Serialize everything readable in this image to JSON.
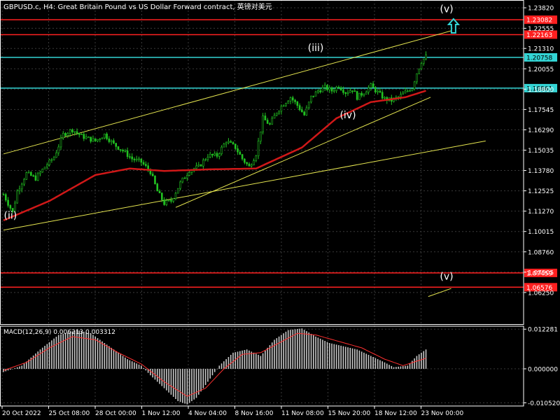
{
  "header": {
    "symbol_line": "GBPUSD.c, H4:  Great Britain Pound vs US Dollar Forward contract, 英镑对美元"
  },
  "chart_data": {
    "type": "candlestick",
    "symbol": "GBPUSD.c",
    "timeframe": "H4",
    "price_axis": {
      "range": [
        1.043,
        1.243
      ],
      "ticks": [
        1.2382,
        1.22555,
        1.2131,
        1.20055,
        1.188,
        1.17545,
        1.1629,
        1.15035,
        1.1378,
        1.12525,
        1.1127,
        1.10015,
        1.0876,
        1.07505,
        1.0625
      ],
      "tick_labels": [
        "1.23820",
        "1.22555",
        "1.21310",
        "1.20055",
        "1.18800",
        "1.17545",
        "1.16290",
        "1.15035",
        "1.13780",
        "1.12525",
        "1.11270",
        "1.10015",
        "1.08760",
        "1.07505",
        "1.06250"
      ]
    },
    "time_axis": {
      "labels": [
        "20 Oct 2022",
        "25 Oct 08:00",
        "28 Oct 00:00",
        "1 Nov 12:00",
        "4 Nov 04:00",
        "8 Nov 16:00",
        "11 Nov 08:00",
        "15 Nov 20:00",
        "18 Nov 12:00",
        "23 Nov 00:00"
      ]
    },
    "grid": true,
    "candle_color": "#22c322",
    "price_anchors": [
      [
        0,
        1.123
      ],
      [
        4,
        1.112
      ],
      [
        6,
        1.125
      ],
      [
        10,
        1.136
      ],
      [
        14,
        1.133
      ],
      [
        18,
        1.14
      ],
      [
        22,
        1.146
      ],
      [
        26,
        1.16
      ],
      [
        30,
        1.163
      ],
      [
        34,
        1.159
      ],
      [
        40,
        1.156
      ],
      [
        44,
        1.16
      ],
      [
        48,
        1.154
      ],
      [
        52,
        1.15
      ],
      [
        56,
        1.145
      ],
      [
        60,
        1.143
      ],
      [
        64,
        1.137
      ],
      [
        67,
        1.125
      ],
      [
        70,
        1.1175
      ],
      [
        73,
        1.119
      ],
      [
        77,
        1.13
      ],
      [
        81,
        1.138
      ],
      [
        85,
        1.14
      ],
      [
        89,
        1.147
      ],
      [
        93,
        1.147
      ],
      [
        97,
        1.156
      ],
      [
        101,
        1.152
      ],
      [
        104,
        1.145
      ],
      [
        107,
        1.14
      ],
      [
        110,
        1.148
      ],
      [
        113,
        1.17
      ],
      [
        116,
        1.166
      ],
      [
        119,
        1.174
      ],
      [
        122,
        1.179
      ],
      [
        125,
        1.183
      ],
      [
        128,
        1.178
      ],
      [
        131,
        1.172
      ],
      [
        134,
        1.183
      ],
      [
        137,
        1.187
      ],
      [
        140,
        1.189
      ],
      [
        143,
        1.187
      ],
      [
        146,
        1.19
      ],
      [
        149,
        1.186
      ],
      [
        152,
        1.188
      ],
      [
        154,
        1.183
      ],
      [
        157,
        1.186
      ],
      [
        160,
        1.19
      ],
      [
        163,
        1.186
      ],
      [
        166,
        1.182
      ],
      [
        169,
        1.181
      ],
      [
        172,
        1.183
      ],
      [
        175,
        1.186
      ],
      [
        178,
        1.189
      ],
      [
        180,
        1.198
      ],
      [
        182,
        1.205
      ],
      [
        184,
        1.2082
      ]
    ],
    "moving_average": {
      "color": "#d01818",
      "points": [
        [
          0,
          1.107
        ],
        [
          20,
          1.119
        ],
        [
          40,
          1.135
        ],
        [
          55,
          1.139
        ],
        [
          70,
          1.1375
        ],
        [
          90,
          1.1385
        ],
        [
          110,
          1.139
        ],
        [
          130,
          1.152
        ],
        [
          145,
          1.17
        ],
        [
          160,
          1.18
        ],
        [
          175,
          1.183
        ],
        [
          184,
          1.187
        ]
      ]
    },
    "horizontal_levels": [
      {
        "price": 1.23082,
        "label": "1.23082",
        "color": "#ff2020"
      },
      {
        "price": 1.22163,
        "label": "1.22163",
        "color": "#ff2020"
      },
      {
        "price": 1.20758,
        "label": "1.20758",
        "color": "#33d4d4"
      },
      {
        "price": 1.18861,
        "label": "1.18861",
        "color": "#33d4d4"
      },
      {
        "price": 1.07459,
        "label": "1.07459",
        "color": "#ff2020"
      },
      {
        "price": 1.06576,
        "label": "1.06576",
        "color": "#ff2020"
      }
    ],
    "trendlines": [
      {
        "from": [
          0,
          1.148
        ],
        "to": [
          195,
          1.224
        ],
        "color": "#e6e650"
      },
      {
        "from": [
          0,
          1.101
        ],
        "to": [
          210,
          1.156
        ],
        "color": "#e6e650"
      },
      {
        "from": [
          75,
          1.115
        ],
        "to": [
          186,
          1.183
        ],
        "color": "#e6e650"
      },
      {
        "from": [
          185,
          1.06
        ],
        "to": [
          195,
          1.065
        ],
        "color": "#e6e650"
      }
    ],
    "wave_labels": [
      {
        "text": "(ii)",
        "bar": 3,
        "price": 1.108
      },
      {
        "text": "(iii)",
        "bar": 136,
        "price": 1.2115
      },
      {
        "text": "(iv)",
        "bar": 150,
        "price": 1.17
      },
      {
        "text": "(v)",
        "bar": 193,
        "price": 1.2355
      },
      {
        "text": "(v)",
        "bar": 193,
        "price": 1.0705
      }
    ],
    "arrow": {
      "bar": 196,
      "price": 1.227,
      "color": "#33d4d4"
    },
    "macd": {
      "title": "MACD(12,26,9) 0.006213 0.003312",
      "range": [
        -0.0115,
        0.0132
      ],
      "ticks": [
        0.012281,
        0.0,
        -0.01052
      ],
      "tick_labels": [
        "0.012281",
        "0.000000",
        "-0.010520"
      ],
      "hist_color": "#c8c8c8",
      "signal_color": "#ff3030",
      "histogram_anchors": [
        [
          0,
          -0.001
        ],
        [
          8,
          0.001
        ],
        [
          16,
          0.006
        ],
        [
          24,
          0.0105
        ],
        [
          32,
          0.012
        ],
        [
          38,
          0.011
        ],
        [
          46,
          0.007
        ],
        [
          54,
          0.003
        ],
        [
          60,
          0.001
        ],
        [
          64,
          -0.002
        ],
        [
          70,
          -0.006
        ],
        [
          76,
          -0.01
        ],
        [
          80,
          -0.011
        ],
        [
          84,
          -0.009
        ],
        [
          88,
          -0.005
        ],
        [
          94,
          0.001
        ],
        [
          100,
          0.005
        ],
        [
          106,
          0.006
        ],
        [
          112,
          0.004
        ],
        [
          118,
          0.009
        ],
        [
          124,
          0.012
        ],
        [
          130,
          0.0125
        ],
        [
          136,
          0.01
        ],
        [
          142,
          0.008
        ],
        [
          148,
          0.007
        ],
        [
          154,
          0.006
        ],
        [
          160,
          0.004
        ],
        [
          166,
          0.002
        ],
        [
          170,
          0.0005
        ],
        [
          176,
          0.001
        ],
        [
          180,
          0.004
        ],
        [
          184,
          0.006
        ]
      ],
      "signal_anchors": [
        [
          0,
          -0.0005
        ],
        [
          10,
          0.002
        ],
        [
          20,
          0.0065
        ],
        [
          30,
          0.01
        ],
        [
          40,
          0.009
        ],
        [
          50,
          0.005
        ],
        [
          60,
          0.0015
        ],
        [
          70,
          -0.004
        ],
        [
          80,
          -0.0085
        ],
        [
          88,
          -0.006
        ],
        [
          96,
          0.0
        ],
        [
          104,
          0.0045
        ],
        [
          112,
          0.005
        ],
        [
          120,
          0.008
        ],
        [
          128,
          0.011
        ],
        [
          136,
          0.0105
        ],
        [
          146,
          0.0085
        ],
        [
          156,
          0.0065
        ],
        [
          166,
          0.003
        ],
        [
          174,
          0.001
        ],
        [
          184,
          0.0033
        ]
      ]
    }
  }
}
